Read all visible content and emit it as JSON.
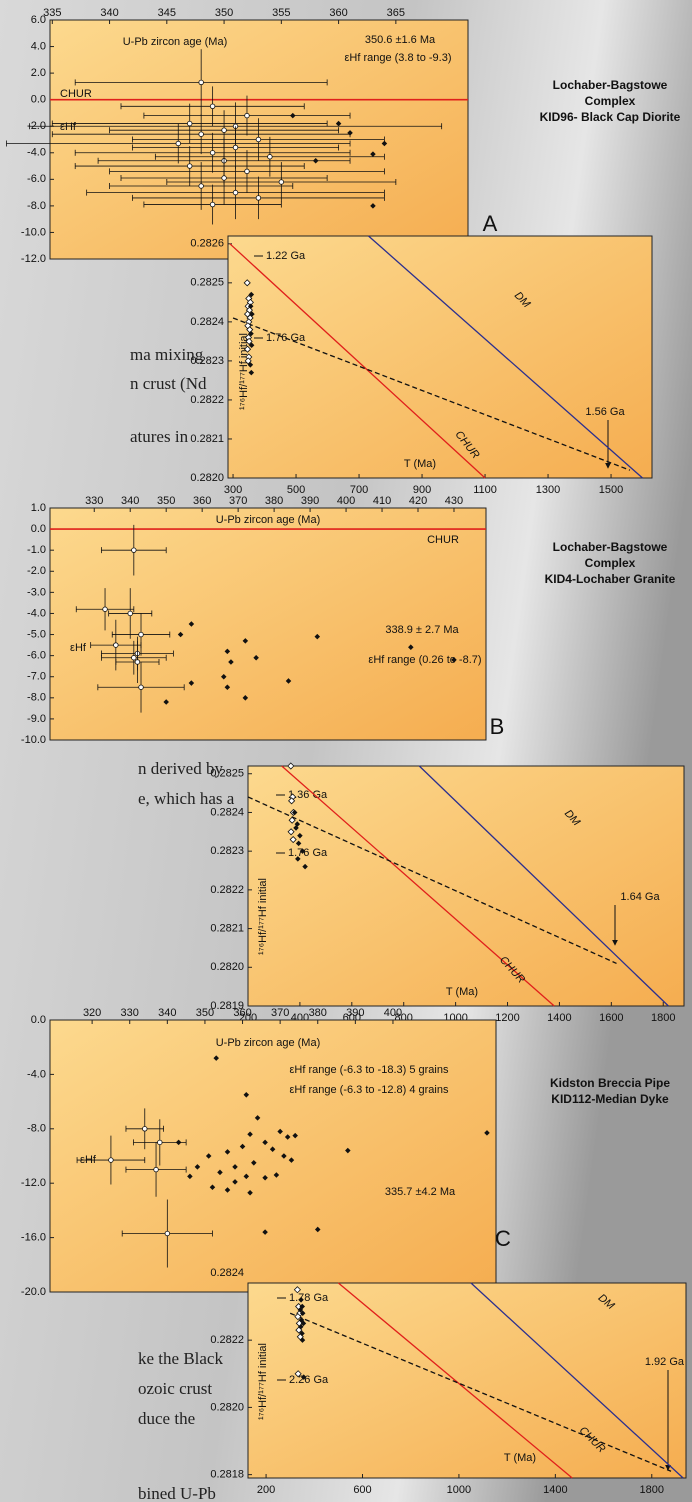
{
  "chart_data": [
    {
      "type": "scatter",
      "title": "U-Pb zircon age (Ma)",
      "ylabel": "εHf",
      "annotations": [
        "350.6 ±1.6 Ma",
        "εHf range (3.8 to -9.3)"
      ],
      "hline": {
        "value": 0,
        "label": "CHUR",
        "color": "#e0201b"
      },
      "xlim": [
        334.8,
        371.3
      ],
      "xticks": [
        335,
        340,
        345,
        350,
        355,
        360,
        365
      ],
      "ylim": [
        -12,
        6
      ],
      "yticks": [
        {
          "value": 6,
          "label": "6.0"
        },
        {
          "value": 4,
          "label": "4.0"
        },
        {
          "value": 2,
          "label": "2.0"
        },
        {
          "value": 0,
          "label": "0.0"
        },
        {
          "value": -2,
          "label": "-2.0"
        },
        {
          "value": -4,
          "label": "-4.0"
        },
        {
          "value": -6,
          "label": "-6.0"
        },
        {
          "value": -8,
          "label": "-8.0"
        },
        {
          "value": -10,
          "label": "-10.0"
        },
        {
          "value": -12,
          "label": "-12.0"
        }
      ],
      "series": [
        {
          "marker": "circle",
          "color": "#111111",
          "x": [
            348,
            349,
            352,
            347,
            351,
            350,
            348,
            353,
            346,
            351,
            349,
            354,
            350,
            347,
            352,
            350,
            355,
            348,
            351,
            353,
            349
          ],
          "values": [
            1.3,
            -0.5,
            -1.2,
            -1.8,
            -2.0,
            -2.3,
            -2.6,
            -3.0,
            -3.3,
            -3.6,
            -4.0,
            -4.3,
            -4.6,
            -5.0,
            -5.4,
            -5.9,
            -6.2,
            -6.5,
            -7.0,
            -7.4,
            -7.9
          ],
          "xerr": [
            11,
            8,
            9,
            12,
            18,
            10,
            13,
            11,
            15,
            9,
            12,
            10,
            11,
            10,
            12,
            9,
            10,
            8,
            13,
            11,
            6
          ],
          "yerr": [
            2.5,
            1.5,
            1.5,
            1.5,
            1.8,
            1.5,
            1.5,
            1.6,
            1.5,
            1.6,
            1.5,
            1.5,
            1.8,
            1.5,
            1.6,
            2,
            1.5,
            1.8,
            2,
            1.6,
            1.5
          ]
        },
        {
          "marker": "diamond",
          "color": "#111111",
          "x": [
            356,
            360,
            361,
            364,
            363,
            363,
            358
          ],
          "values": [
            -1.2,
            -1.8,
            -2.5,
            -3.3,
            -4.1,
            -8.0,
            -4.6
          ]
        }
      ]
    },
    {
      "type": "line",
      "xlabel": "T (Ma)",
      "ylabel": "¹⁷⁶Hf/¹⁷⁷Hf initial",
      "annotations": [
        "1.22 Ga",
        "1.76 Ga",
        "1.56 Ga"
      ],
      "xlim": [
        284,
        1630
      ],
      "xticks": [
        300,
        500,
        700,
        900,
        1100,
        1300,
        1500
      ],
      "ylim": [
        0.282,
        0.28262
      ],
      "yticks": [
        0.2826,
        0.2825,
        0.2824,
        0.2823,
        0.2822,
        0.2821,
        {
          "value": 0.282,
          "label": "0.2820"
        }
      ],
      "series": [
        {
          "name": "CHUR",
          "color": "#e0201b",
          "x": [
            290,
            1100
          ],
          "values": [
            0.2826,
            0.282
          ]
        },
        {
          "name": "DM",
          "color": "#2b2f8f",
          "x": [
            730,
            1600
          ],
          "values": [
            0.28262,
            0.282
          ]
        },
        {
          "color": "#111111",
          "dash": true,
          "x": [
            300,
            1560
          ],
          "values": [
            0.28241,
            0.28202
          ]
        },
        {
          "marker": "open-diamond",
          "color": "#111111",
          "x": [
            345,
            350,
            355,
            348,
            352,
            346,
            354,
            350,
            347,
            353,
            349,
            351,
            346,
            350,
            348
          ],
          "values": [
            0.2825,
            0.28246,
            0.28245,
            0.28244,
            0.28243,
            0.28242,
            0.28241,
            0.2824,
            0.28239,
            0.28238,
            0.28236,
            0.28235,
            0.28233,
            0.28231,
            0.2823
          ]
        },
        {
          "marker": "diamond",
          "color": "#111111",
          "x": [
            358,
            356,
            360,
            357,
            359,
            355,
            358
          ],
          "values": [
            0.28247,
            0.28244,
            0.28242,
            0.28237,
            0.28234,
            0.28229,
            0.28227
          ]
        }
      ]
    },
    {
      "type": "scatter",
      "title": "U-Pb zircon age (Ma)",
      "ylabel": "εHf",
      "annotations": [
        "338.9 ± 2.7 Ma",
        "εHf range (0.26 to -8.7)"
      ],
      "hline": {
        "value": 0,
        "label": "CHUR",
        "color": "#e0201b"
      },
      "xlim": [
        317.7,
        438.9
      ],
      "xticks": [
        330,
        340,
        350,
        360,
        370,
        380,
        390,
        400,
        410,
        420,
        430
      ],
      "ylim": [
        -10,
        1
      ],
      "yticks": [
        {
          "value": 1,
          "label": "1.0"
        },
        {
          "value": 0,
          "label": "0.0"
        },
        {
          "value": -1,
          "label": "-1.0"
        },
        {
          "value": -2,
          "label": "-2.0"
        },
        {
          "value": -3,
          "label": "-3.0"
        },
        {
          "value": -4,
          "label": "-4.0"
        },
        {
          "value": -5,
          "label": "-5.0"
        },
        {
          "value": -6,
          "label": "-6.0"
        },
        {
          "value": -7,
          "label": "-7.0"
        },
        {
          "value": -8,
          "label": "-8.0"
        },
        {
          "value": -9,
          "label": "-9.0"
        },
        {
          "value": -10,
          "label": "-10.0"
        }
      ],
      "series": [
        {
          "marker": "circle",
          "color": "#111111",
          "x": [
            341,
            333,
            340,
            343,
            336,
            342,
            341,
            342,
            343
          ],
          "values": [
            -1.0,
            -3.8,
            -4.0,
            -5.0,
            -5.5,
            -5.9,
            -6.1,
            -6.3,
            -7.5
          ],
          "xerr": [
            9,
            8,
            6,
            8,
            7,
            10,
            9,
            6,
            12
          ],
          "yerr": [
            1.2,
            1,
            1.2,
            1,
            1.2,
            0.8,
            0.8,
            1,
            1.2
          ]
        },
        {
          "marker": "diamond",
          "color": "#111111",
          "x": [
            357,
            354,
            372,
            367,
            392,
            418,
            375,
            368,
            430,
            366,
            357,
            384,
            367,
            350,
            372
          ],
          "values": [
            -4.5,
            -5.0,
            -5.3,
            -5.8,
            -5.1,
            -5.6,
            -6.1,
            -6.3,
            -6.2,
            -7.0,
            -7.3,
            -7.2,
            -7.5,
            -8.2,
            -8.0
          ]
        }
      ]
    },
    {
      "type": "line",
      "xlabel": "T (Ma)",
      "ylabel": "¹⁷⁶Hf/¹⁷⁷Hf initial",
      "annotations": [
        "1.36 Ga",
        "1.76 Ga",
        "1.64 Ga"
      ],
      "xlim": [
        200,
        1880
      ],
      "xticks": [
        200,
        400,
        600,
        800,
        1000,
        1200,
        1400,
        1600,
        1800
      ],
      "ylim": [
        0.2819,
        0.28252
      ],
      "yticks": [
        0.2825,
        0.2824,
        0.2823,
        0.2822,
        0.2821,
        {
          "value": 0.282,
          "label": "0.2820"
        },
        0.2819
      ],
      "series": [
        {
          "name": "CHUR",
          "color": "#e0201b",
          "x": [
            330,
            1380
          ],
          "values": [
            0.28252,
            0.2819
          ]
        },
        {
          "name": "DM",
          "color": "#2b2f8f",
          "x": [
            860,
            1820
          ],
          "values": [
            0.28252,
            0.2819
          ]
        },
        {
          "color": "#111111",
          "dash": true,
          "x": [
            200,
            1620
          ],
          "values": [
            0.28244,
            0.28201
          ]
        },
        {
          "marker": "open-diamond",
          "color": "#111111",
          "x": [
            365,
            372,
            368,
            375,
            370,
            366,
            374
          ],
          "values": [
            0.28252,
            0.28244,
            0.28243,
            0.2824,
            0.28238,
            0.28235,
            0.28233
          ]
        },
        {
          "marker": "diamond",
          "color": "#111111",
          "x": [
            380,
            390,
            385,
            400,
            395,
            410,
            392,
            420
          ],
          "values": [
            0.2824,
            0.28237,
            0.28236,
            0.28234,
            0.28232,
            0.2823,
            0.28228,
            0.28226
          ]
        }
      ]
    },
    {
      "type": "scatter",
      "title": "U-Pb zircon age  (Ma)",
      "ylabel": "εHf",
      "annotations": [
        "εHf range (-6.3 to -18.3) 5 grains",
        "εHf range (-6.3 to -12.8) 4 grains",
        "335.7 ±4.2 Ma"
      ],
      "xlim": [
        308.8,
        427.4
      ],
      "xticks": [
        320,
        330,
        340,
        350,
        360,
        370,
        380,
        390,
        400
      ],
      "ylim": [
        -20,
        0
      ],
      "yticks": [
        {
          "value": 0,
          "label": "0.0"
        },
        {
          "value": -4,
          "label": "-4.0"
        },
        {
          "value": -8,
          "label": "-8.0"
        },
        {
          "value": -12,
          "label": "-12.0"
        },
        {
          "value": -16,
          "label": "-16.0"
        },
        {
          "value": -20,
          "label": "-20.0"
        }
      ],
      "series": [
        {
          "marker": "circle",
          "color": "#111111",
          "x": [
            334,
            338,
            337,
            325,
            340
          ],
          "values": [
            -8.0,
            -9.0,
            -11.0,
            -10.3,
            -15.7
          ],
          "xerr": [
            5,
            7,
            8,
            9,
            12
          ],
          "yerr": [
            1.5,
            1.7,
            2,
            1.8,
            2.5
          ]
        },
        {
          "marker": "diamond",
          "color": "#111111",
          "x": [
            353,
            361,
            364,
            362,
            370,
            372,
            374,
            366,
            360,
            356,
            351,
            368,
            371,
            373,
            363,
            358,
            348,
            354,
            361,
            366,
            352,
            356,
            362,
            358,
            369,
            388,
            425,
            366,
            380,
            343,
            346
          ],
          "values": [
            -2.8,
            -5.5,
            -7.2,
            -8.4,
            -8.2,
            -8.6,
            -8.5,
            -9.0,
            -9.3,
            -9.7,
            -10.0,
            -9.5,
            -10.0,
            -10.3,
            -10.5,
            -10.8,
            -10.8,
            -11.2,
            -11.5,
            -11.6,
            -12.3,
            -12.5,
            -12.7,
            -11.9,
            -11.4,
            -9.6,
            -8.3,
            -15.6,
            -15.4,
            -9.0,
            -11.5
          ]
        }
      ]
    },
    {
      "type": "line",
      "xlabel": "T (Ma)",
      "ylabel": "¹⁷⁶Hf/¹⁷⁷Hf initial",
      "annotations": [
        "1.78 Ga",
        "2.26 Ga",
        "1.92 Ga"
      ],
      "xlim": [
        125,
        1942
      ],
      "xticks": [
        200,
        600,
        1000,
        1400,
        1800
      ],
      "ylim": [
        0.28179,
        0.28237
      ],
      "yticks": [
        0.2824,
        0.2822,
        {
          "value": 0.282,
          "label": "0.2820"
        },
        0.2818
      ],
      "series": [
        {
          "name": "CHUR",
          "color": "#e0201b",
          "x": [
            500,
            1470
          ],
          "values": [
            0.28237,
            0.28179
          ]
        },
        {
          "name": "DM",
          "color": "#2b2f8f",
          "x": [
            1050,
            1930
          ],
          "values": [
            0.28237,
            0.28179
          ]
        },
        {
          "color": "#111111",
          "dash": true,
          "x": [
            300,
            1880
          ],
          "values": [
            0.28228,
            0.28181
          ]
        },
        {
          "marker": "open-diamond",
          "color": "#111111",
          "x": [
            330,
            335,
            340,
            332,
            338,
            336,
            342,
            333
          ],
          "values": [
            0.28235,
            0.2823,
            0.28228,
            0.28227,
            0.28225,
            0.28223,
            0.28221,
            0.2821
          ]
        },
        {
          "marker": "diamond",
          "color": "#111111",
          "x": [
            345,
            350,
            342,
            352,
            347,
            355,
            344,
            349,
            351,
            356
          ],
          "values": [
            0.28232,
            0.2823,
            0.28229,
            0.28228,
            0.28226,
            0.28225,
            0.28224,
            0.28222,
            0.2822,
            0.28209
          ]
        }
      ]
    }
  ],
  "panels": [
    {
      "letter": "A",
      "caption": [
        "Lochaber-Bagstowe",
        "Complex",
        "KID96- Black Cap Diorite"
      ]
    },
    {
      "letter": "B",
      "caption": [
        "Lochaber-Bagstowe",
        "Complex",
        "KID4-Lochaber Granite"
      ]
    },
    {
      "letter": "C",
      "caption": [
        "Kidston Breccia Pipe",
        "KID112-Median Dyke"
      ]
    }
  ],
  "body_text": [
    "ma mixing",
    "n crust (Nd",
    "atures in",
    "n derived by",
    "e, which has a",
    "ke the Black",
    "ozoic crust",
    "duce the",
    "bined U-Pb"
  ]
}
